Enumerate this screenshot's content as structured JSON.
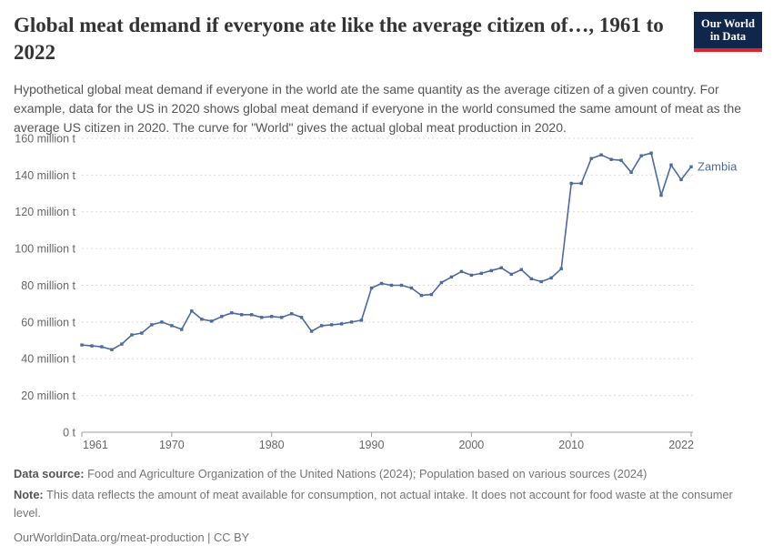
{
  "header": {
    "title": "Global meat demand if everyone ate like the average citizen of…, 1961 to 2022",
    "logo": {
      "line1": "Our World",
      "line2": "in Data"
    }
  },
  "subtitle": "Hypothetical global meat demand if everyone in the world ate the same quantity as the average citizen of a given country. For example, data for the US in 2020 shows global meat demand if everyone in the world consumed the same amount of meat as the average US citizen in 2020. The curve for \"World\" gives the actual global meat production in 2020.",
  "chart_data": {
    "type": "line",
    "title": "Global meat demand if everyone ate like the average citizen of…, 1961 to 2022",
    "unit": "million t",
    "xlabel": "",
    "ylabel": "",
    "xlim": [
      1961,
      2022
    ],
    "ylim": [
      0,
      160
    ],
    "x_ticks": [
      1961,
      1970,
      1980,
      1990,
      2000,
      2010,
      2022
    ],
    "y_ticks": [
      0,
      20,
      40,
      60,
      80,
      100,
      120,
      140,
      160
    ],
    "y_tick_suffix": " million t",
    "y_zero_label": "0 t",
    "grid": "horizontal-dashed",
    "legend_position": "end-of-line-label",
    "series": [
      {
        "name": "Zambia",
        "color": "#4C6A9C",
        "x": [
          1961,
          1962,
          1963,
          1964,
          1965,
          1966,
          1967,
          1968,
          1969,
          1970,
          1971,
          1972,
          1973,
          1974,
          1975,
          1976,
          1977,
          1978,
          1979,
          1980,
          1981,
          1982,
          1983,
          1984,
          1985,
          1986,
          1987,
          1988,
          1989,
          1990,
          1991,
          1992,
          1993,
          1994,
          1995,
          1996,
          1997,
          1998,
          1999,
          2000,
          2001,
          2002,
          2003,
          2004,
          2005,
          2006,
          2007,
          2008,
          2009,
          2010,
          2011,
          2012,
          2013,
          2014,
          2015,
          2016,
          2017,
          2018,
          2019,
          2020,
          2021,
          2022
        ],
        "values": [
          47.5,
          47,
          46.5,
          45,
          48,
          53,
          54,
          58.5,
          60,
          58,
          56,
          66,
          61.5,
          60.5,
          63,
          65,
          64,
          64,
          62.5,
          63,
          62.5,
          64.5,
          62.5,
          55,
          58,
          58.5,
          59,
          60,
          61,
          78.5,
          81,
          80,
          80,
          78.5,
          74.5,
          75,
          81.5,
          84.5,
          87.5,
          85.5,
          86.5,
          88,
          89.5,
          86,
          88.5,
          83.5,
          82,
          84,
          89,
          135.5,
          135.5,
          149,
          151,
          148.5,
          148,
          141.5,
          150.5,
          152,
          129,
          145.5,
          137.5,
          144.5
        ]
      }
    ]
  },
  "footer": {
    "data_source_label": "Data source:",
    "data_source_text": "Food and Agriculture Organization of the United Nations (2024); Population based on various sources (2024)",
    "note_label": "Note:",
    "note_text": "This data reflects the amount of meat available for consumption, not actual intake. It does not account for food waste at the consumer level.",
    "citation_link": "OurWorldinData.org/meat-production",
    "citation_separator": " | ",
    "license": "CC BY"
  },
  "colors": {
    "series_blue": "#4C6A9C",
    "logo_navy": "#10264a",
    "logo_red": "#e0242f",
    "title_text": "#333333",
    "subtitle_text": "#555555",
    "axis_text": "#666666",
    "gridline": "#dcdcdc",
    "axis_line": "#9e9e9e",
    "footer_text": "#757575",
    "footer_bold": "#555555"
  }
}
